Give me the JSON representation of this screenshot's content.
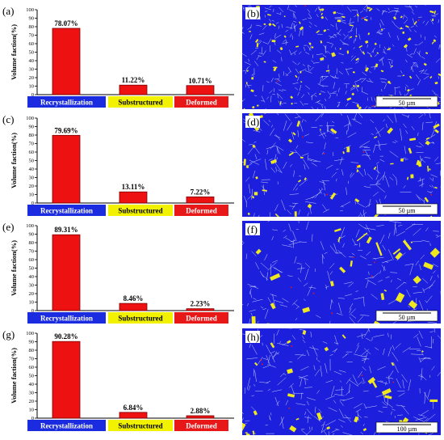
{
  "colors": {
    "bar": "#ee1111",
    "bar_edge": "#7a0000",
    "recrystallization": "#1a2be0",
    "substructured": "#f2f200",
    "deformed": "#e81818",
    "micro_bg": "#1c20dd",
    "micro_grain": "#f0e81e"
  },
  "chart_data": [
    {
      "type": "bar",
      "panel": "(a)",
      "categories": [
        "Recrystallization",
        "Substructured",
        "Deformed"
      ],
      "values": [
        78.07,
        11.22,
        10.71
      ],
      "value_labels": [
        "78.07%",
        "11.22%",
        "10.71%"
      ],
      "ylabel": "Volume faction(%)",
      "ylim": [
        0,
        100
      ],
      "yticks": [
        "0",
        "10",
        "20",
        "30",
        "40",
        "50",
        "60",
        "70",
        "80",
        "90",
        "100"
      ]
    },
    {
      "type": "bar",
      "panel": "(c)",
      "categories": [
        "Recrystallization",
        "Substructured",
        "Deformed"
      ],
      "values": [
        79.69,
        13.11,
        7.22
      ],
      "value_labels": [
        "79.69%",
        "13.11%",
        "7.22%"
      ],
      "ylabel": "Volume faction(%)",
      "ylim": [
        0,
        100
      ],
      "yticks": [
        "0",
        "10",
        "20",
        "30",
        "40",
        "50",
        "60",
        "70",
        "80",
        "90",
        "100"
      ]
    },
    {
      "type": "bar",
      "panel": "(e)",
      "categories": [
        "Recrystallization",
        "Substructured",
        "Deformed"
      ],
      "values": [
        89.31,
        8.46,
        2.23
      ],
      "value_labels": [
        "89.31%",
        "8.46%",
        "2.23%"
      ],
      "ylabel": "Volume faction(%)",
      "ylim": [
        0,
        100
      ],
      "yticks": [
        "0",
        "10",
        "20",
        "30",
        "40",
        "50",
        "60",
        "70",
        "80",
        "90",
        "100"
      ]
    },
    {
      "type": "bar",
      "panel": "(g)",
      "categories": [
        "Recrystallization",
        "Substructured",
        "Deformed"
      ],
      "values": [
        90.28,
        6.84,
        2.88
      ],
      "value_labels": [
        "90.28%",
        "6.84%",
        "2.88%"
      ],
      "ylabel": "Volume faction(%)",
      "ylim": [
        0,
        100
      ],
      "yticks": [
        "0",
        "10",
        "20",
        "30",
        "40",
        "50",
        "60",
        "70",
        "80",
        "90",
        "100"
      ]
    }
  ],
  "micrographs": [
    {
      "panel": "(b)",
      "scale_bar": "50 µm"
    },
    {
      "panel": "(d)",
      "scale_bar": "50 µm"
    },
    {
      "panel": "(f)",
      "scale_bar": "50 µm"
    },
    {
      "panel": "(h)",
      "scale_bar": "100 µm"
    }
  ]
}
